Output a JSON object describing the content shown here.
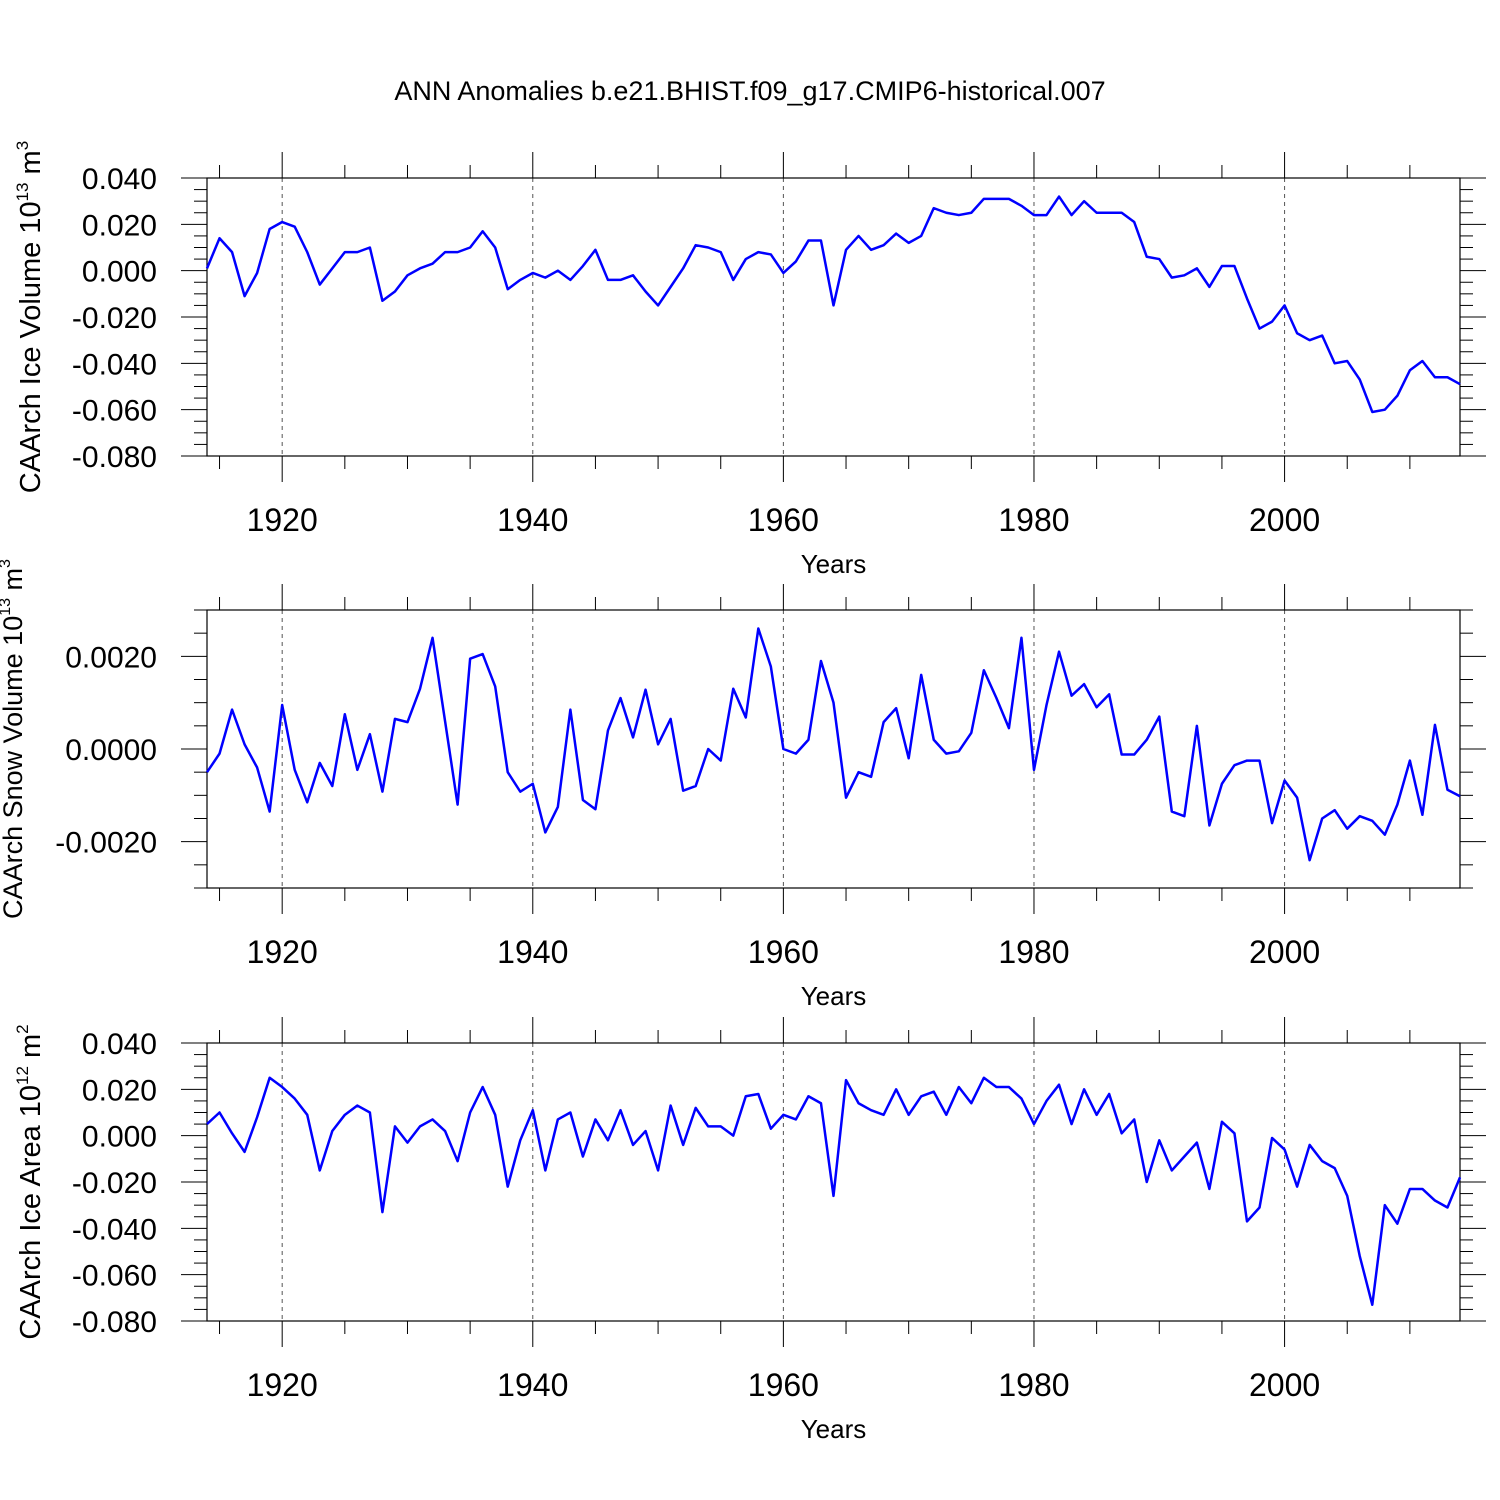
{
  "title": "ANN Anomalies b.e21.BHIST.f09_g17.CMIP6-historical.007",
  "chart_data": [
    {
      "type": "line",
      "title": "",
      "ylabel_main": "CAArch Ice Volume 10",
      "ylabel_sup": "13",
      "ylabel_unit": "m",
      "ylabel_unit_sup": "3",
      "xlabel": "Years",
      "xlim": [
        1914,
        2014
      ],
      "ylim": [
        -0.08,
        0.04
      ],
      "grid": "vertical dashed at major x ticks",
      "x_ticks": [
        1920,
        1940,
        1960,
        1980,
        2000
      ],
      "x_tick_labels": [
        "1920",
        "1940",
        "1960",
        "1980",
        "2000"
      ],
      "y_ticks": [
        0.04,
        0.02,
        0.0,
        -0.02,
        -0.04,
        -0.06,
        -0.08
      ],
      "y_tick_labels": [
        "0.040",
        "0.020",
        "0.000",
        "-0.020",
        "-0.040",
        "-0.060",
        "-0.080"
      ],
      "series": [
        {
          "name": "CAArch Ice Volume",
          "color": "#0000ff",
          "x_start": 1914,
          "values": [
            0.001,
            0.014,
            0.008,
            -0.011,
            -0.001,
            0.018,
            0.021,
            0.019,
            0.008,
            -0.006,
            0.001,
            0.008,
            0.008,
            0.01,
            -0.013,
            -0.009,
            -0.002,
            0.001,
            0.003,
            0.008,
            0.008,
            0.01,
            0.017,
            0.01,
            -0.008,
            -0.004,
            -0.001,
            -0.003,
            0.0,
            -0.004,
            0.002,
            0.009,
            -0.004,
            -0.004,
            -0.002,
            -0.009,
            -0.015,
            -0.007,
            0.001,
            0.011,
            0.01,
            0.008,
            -0.004,
            0.005,
            0.008,
            0.007,
            -0.001,
            0.004,
            0.013,
            0.013,
            -0.015,
            0.009,
            0.015,
            0.009,
            0.011,
            0.016,
            0.012,
            0.015,
            0.027,
            0.025,
            0.024,
            0.025,
            0.031,
            0.031,
            0.031,
            0.028,
            0.024,
            0.024,
            0.032,
            0.024,
            0.03,
            0.025,
            0.025,
            0.025,
            0.021,
            0.006,
            0.005,
            -0.003,
            -0.002,
            0.001,
            -0.007,
            0.002,
            0.002,
            -0.012,
            -0.025,
            -0.022,
            -0.015,
            -0.027,
            -0.03,
            -0.028,
            -0.04,
            -0.039,
            -0.047,
            -0.061,
            -0.06,
            -0.054,
            -0.043,
            -0.039,
            -0.046,
            -0.046,
            -0.049
          ]
        }
      ]
    },
    {
      "type": "line",
      "title": "",
      "ylabel_main": "CAArch Snow Volume 10",
      "ylabel_sup": "13",
      "ylabel_unit": "m",
      "ylabel_unit_sup": "3",
      "xlabel": "Years",
      "xlim": [
        1914,
        2014
      ],
      "ylim": [
        -0.003,
        0.003
      ],
      "grid": "vertical dashed at major x ticks",
      "x_ticks": [
        1920,
        1940,
        1960,
        1980,
        2000
      ],
      "x_tick_labels": [
        "1920",
        "1940",
        "1960",
        "1980",
        "2000"
      ],
      "y_ticks": [
        0.002,
        0.0,
        -0.002
      ],
      "y_tick_labels": [
        "0.0020",
        "0.0000",
        "-0.0020"
      ],
      "series": [
        {
          "name": "CAArch Snow Volume",
          "color": "#0000ff",
          "x_start": 1914,
          "values": [
            -0.0005,
            -0.0001,
            0.00085,
            0.0001,
            -0.0004,
            -0.00135,
            0.00095,
            -0.00045,
            -0.00115,
            -0.0003,
            -0.0008,
            0.00075,
            -0.00045,
            0.00032,
            -0.00092,
            0.00065,
            0.00058,
            0.0013,
            0.0024,
            0.0006,
            -0.0012,
            0.00195,
            0.00205,
            0.00135,
            -0.0005,
            -0.00092,
            -0.00075,
            -0.0018,
            -0.00125,
            0.00085,
            -0.0011,
            -0.0013,
            0.0004,
            0.0011,
            0.00025,
            0.00128,
            0.0001,
            0.00065,
            -0.0009,
            -0.0008,
            0.0,
            -0.00025,
            0.0013,
            0.00068,
            0.0026,
            0.00178,
            0.0,
            -0.0001,
            0.0002,
            0.0019,
            0.001,
            -0.00105,
            -0.0005,
            -0.0006,
            0.00058,
            0.00088,
            -0.0002,
            0.0016,
            0.0002,
            -0.0001,
            -5e-05,
            0.00035,
            0.0017,
            0.0011,
            0.00045,
            0.0024,
            -0.00045,
            0.00095,
            0.0021,
            0.00115,
            0.0014,
            0.0009,
            0.00118,
            -0.00012,
            -0.00012,
            0.0002,
            0.0007,
            -0.00135,
            -0.00145,
            0.0005,
            -0.00165,
            -0.00075,
            -0.00035,
            -0.00025,
            -0.00025,
            -0.0016,
            -0.00068,
            -0.00105,
            -0.0024,
            -0.0015,
            -0.00132,
            -0.00172,
            -0.00145,
            -0.00155,
            -0.00185,
            -0.0012,
            -0.00025,
            -0.00142,
            0.00052,
            -0.00088,
            -0.00102
          ]
        }
      ]
    },
    {
      "type": "line",
      "title": "",
      "ylabel_main": "CAArch Ice Area 10",
      "ylabel_sup": "12",
      "ylabel_unit": "m",
      "ylabel_unit_sup": "2",
      "xlabel": "Years",
      "xlim": [
        1914,
        2014
      ],
      "ylim": [
        -0.08,
        0.04
      ],
      "grid": "vertical dashed at major x ticks",
      "x_ticks": [
        1920,
        1940,
        1960,
        1980,
        2000
      ],
      "x_tick_labels": [
        "1920",
        "1940",
        "1960",
        "1980",
        "2000"
      ],
      "y_ticks": [
        0.04,
        0.02,
        0.0,
        -0.02,
        -0.04,
        -0.06,
        -0.08
      ],
      "y_tick_labels": [
        "0.040",
        "0.020",
        "0.000",
        "-0.020",
        "-0.040",
        "-0.060",
        "-0.080"
      ],
      "series": [
        {
          "name": "CAArch Ice Area",
          "color": "#0000ff",
          "x_start": 1914,
          "values": [
            0.005,
            0.01,
            0.001,
            -0.007,
            0.008,
            0.025,
            0.021,
            0.016,
            0.009,
            -0.015,
            0.002,
            0.009,
            0.013,
            0.01,
            -0.033,
            0.004,
            -0.003,
            0.004,
            0.007,
            0.002,
            -0.011,
            0.01,
            0.021,
            0.009,
            -0.022,
            -0.002,
            0.011,
            -0.015,
            0.007,
            0.01,
            -0.009,
            0.007,
            -0.002,
            0.011,
            -0.004,
            0.002,
            -0.015,
            0.013,
            -0.004,
            0.012,
            0.004,
            0.004,
            0.0,
            0.017,
            0.018,
            0.003,
            0.009,
            0.007,
            0.017,
            0.014,
            -0.026,
            0.024,
            0.014,
            0.011,
            0.009,
            0.02,
            0.009,
            0.017,
            0.019,
            0.009,
            0.021,
            0.014,
            0.025,
            0.021,
            0.021,
            0.016,
            0.005,
            0.015,
            0.022,
            0.005,
            0.02,
            0.009,
            0.018,
            0.001,
            0.007,
            -0.02,
            -0.002,
            -0.015,
            -0.009,
            -0.003,
            -0.023,
            0.006,
            0.001,
            -0.037,
            -0.031,
            -0.001,
            -0.006,
            -0.022,
            -0.004,
            -0.011,
            -0.014,
            -0.026,
            -0.052,
            -0.073,
            -0.03,
            -0.038,
            -0.023,
            -0.023,
            -0.028,
            -0.031,
            -0.018
          ]
        }
      ]
    }
  ]
}
